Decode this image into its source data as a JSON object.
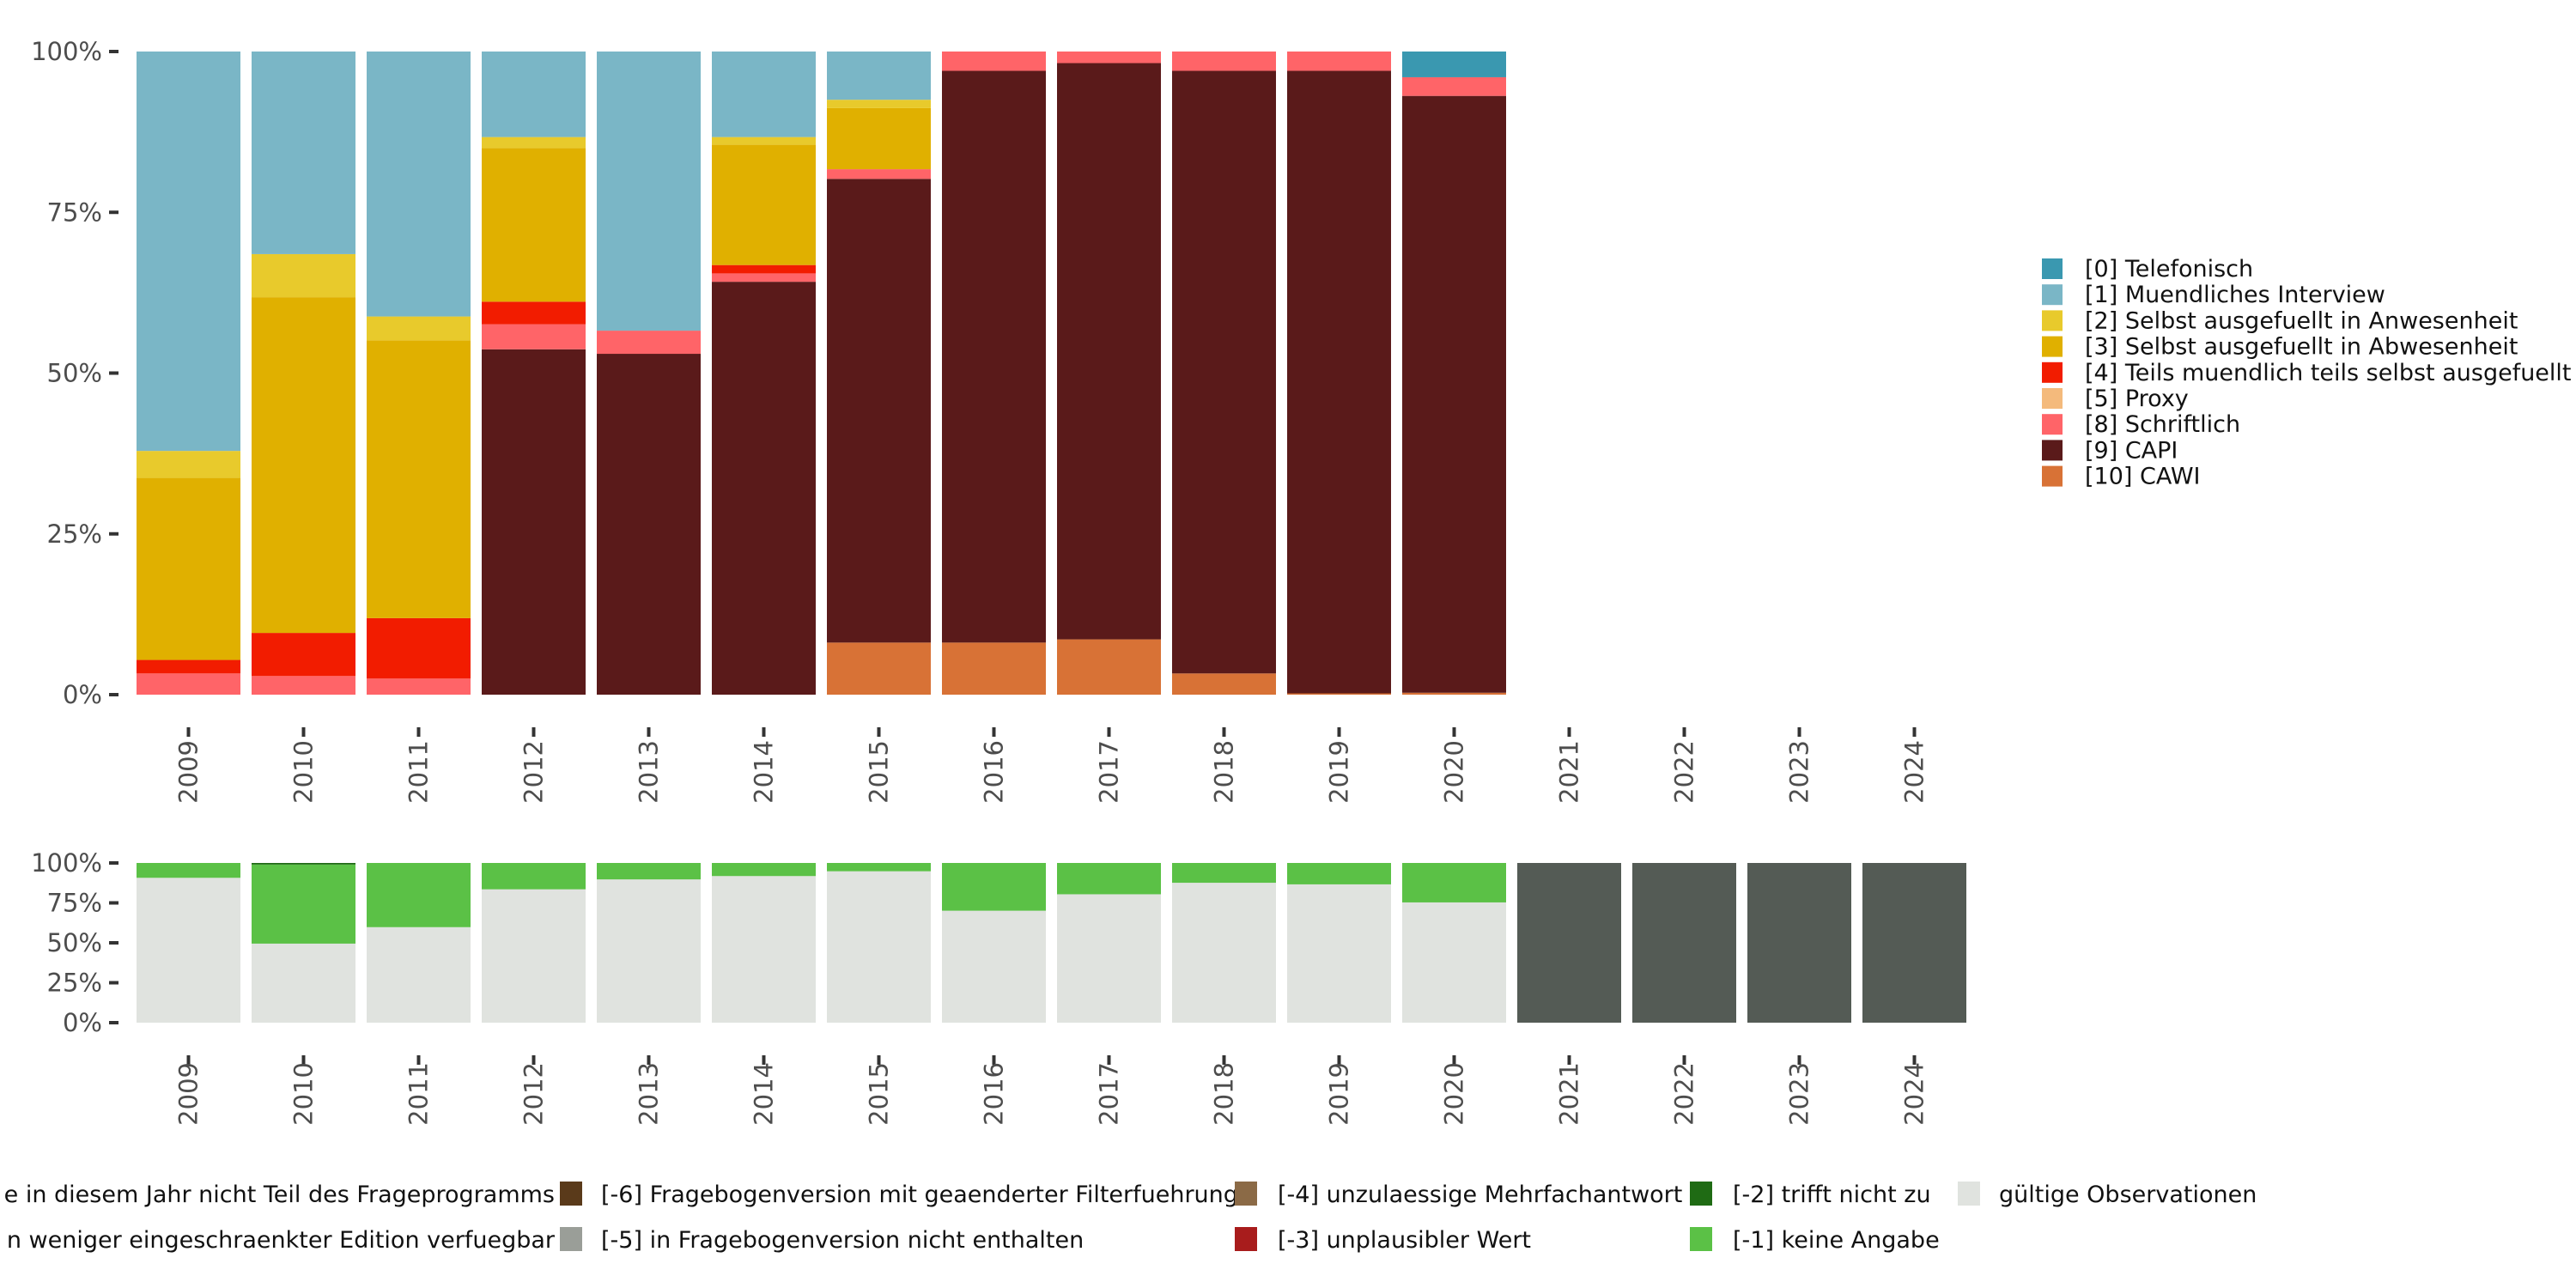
{
  "chart_data": [
    {
      "type": "bar",
      "stacked": "percent",
      "title": "",
      "xlabel": "",
      "ylabel": "",
      "ylim": [
        0,
        100
      ],
      "yticks": [
        "0%",
        "25%",
        "50%",
        "75%",
        "100%"
      ],
      "categories": [
        "2009",
        "2010",
        "2011",
        "2012",
        "2013",
        "2014",
        "2015",
        "2016",
        "2017",
        "2018",
        "2019",
        "2020",
        "2021",
        "2022",
        "2023",
        "2024"
      ],
      "legend_position": "right",
      "series": [
        {
          "name": "[10] CAWI",
          "color": "#d87236",
          "values": [
            0,
            0,
            0,
            0,
            0,
            0,
            8.1,
            8.1,
            8.6,
            3.3,
            0.2,
            0.3,
            null,
            null,
            null,
            null
          ]
        },
        {
          "name": "[9] CAPI",
          "color": "#5a1a1a",
          "values": [
            0,
            0,
            0,
            53.7,
            53.0,
            64.2,
            72.1,
            88.9,
            89.6,
            93.7,
            96.8,
            92.8,
            null,
            null,
            null,
            null
          ]
        },
        {
          "name": "[8] Schriftlich",
          "color": "#ff6468",
          "values": [
            3.3,
            2.9,
            2.5,
            3.9,
            3.6,
            1.3,
            1.5,
            3.0,
            1.8,
            3.0,
            3.0,
            2.9,
            null,
            null,
            null,
            null
          ]
        },
        {
          "name": "[5] Proxy",
          "color": "#f4ba7c",
          "values": [
            0,
            0,
            0,
            0,
            0,
            0,
            0,
            0,
            0,
            0,
            0,
            0,
            null,
            null,
            null,
            null
          ]
        },
        {
          "name": "[4] Teils muendlich teils selbst ausgefuellt",
          "color": "#f21c00",
          "values": [
            2.1,
            6.7,
            9.4,
            3.5,
            0,
            1.3,
            0,
            0,
            0,
            0,
            0,
            0,
            null,
            null,
            null,
            null
          ]
        },
        {
          "name": "[3] Selbst ausgefuellt in Abwesenheit",
          "color": "#e0b000",
          "values": [
            28.3,
            52.2,
            43.2,
            23.9,
            0,
            18.7,
            9.5,
            0,
            0,
            0,
            0,
            0,
            null,
            null,
            null,
            null
          ]
        },
        {
          "name": "[2] Selbst ausgefuellt in Anwesenheit",
          "color": "#e8ca2c",
          "values": [
            4.2,
            6.7,
            3.7,
            1.7,
            0,
            1.2,
            1.3,
            0,
            0,
            0,
            0,
            0,
            null,
            null,
            null,
            null
          ]
        },
        {
          "name": "[1] Muendliches Interview",
          "color": "#7ab6c6",
          "values": [
            62.1,
            31.5,
            41.2,
            13.3,
            43.4,
            13.3,
            7.5,
            0,
            0,
            0,
            0,
            0,
            null,
            null,
            null,
            null
          ]
        },
        {
          "name": "[0] Telefonisch",
          "color": "#3a98b0",
          "values": [
            0,
            0,
            0,
            0,
            0,
            0,
            0,
            0,
            0,
            0,
            0,
            4.0,
            null,
            null,
            null,
            null
          ]
        }
      ],
      "legend_order": [
        "[0] Telefonisch",
        "[1] Muendliches Interview",
        "[2] Selbst ausgefuellt in Anwesenheit",
        "[3] Selbst ausgefuellt in Abwesenheit",
        "[4] Teils muendlich teils selbst ausgefuellt",
        "[5] Proxy",
        "[8] Schriftlich",
        "[9] CAPI",
        "[10] CAWI"
      ]
    },
    {
      "type": "bar",
      "stacked": "percent",
      "ylim": [
        0,
        100
      ],
      "yticks": [
        "0%",
        "25%",
        "50%",
        "75%",
        "100%"
      ],
      "categories": [
        "2009",
        "2010",
        "2011",
        "2012",
        "2013",
        "2014",
        "2015",
        "2016",
        "2017",
        "2018",
        "2019",
        "2020",
        "2021",
        "2022",
        "2023",
        "2024"
      ],
      "legend_position": "bottom",
      "series": [
        {
          "name": "gültige Observationen",
          "color": "#e0e3df",
          "values": [
            90.7,
            49.5,
            59.8,
            83.5,
            89.7,
            91.8,
            94.8,
            70.1,
            80.4,
            87.6,
            86.6,
            75.3,
            0,
            0,
            0,
            0
          ]
        },
        {
          "name": "[-1] keine Angabe",
          "color": "#5bc146",
          "values": [
            9.3,
            49.5,
            40.2,
            16.5,
            10.3,
            8.2,
            5.2,
            29.9,
            19.6,
            12.4,
            13.4,
            24.7,
            0,
            0,
            0,
            0
          ]
        },
        {
          "name": "[-2] trifft nicht zu",
          "color": "#1f6b14",
          "values": [
            0,
            1.0,
            0,
            0,
            0,
            0,
            0,
            0,
            0,
            0,
            0,
            0,
            0,
            0,
            0,
            0
          ]
        },
        {
          "name": "[-3] unplausibler Wert",
          "color": "#a81c1c",
          "values": [
            0,
            0,
            0,
            0,
            0,
            0,
            0,
            0,
            0,
            0,
            0,
            0,
            0,
            0,
            0,
            0
          ]
        },
        {
          "name": "[-4] unzulaessige Mehrfachantwort",
          "color": "#8b6a46",
          "values": [
            0,
            0,
            0,
            0,
            0,
            0,
            0,
            0,
            0,
            0,
            0,
            0,
            0,
            0,
            0,
            0
          ]
        },
        {
          "name": "[-5] in Fragebogenversion nicht enthalten",
          "color": "#9a9e98",
          "values": [
            0,
            0,
            0,
            0,
            0,
            0,
            0,
            0,
            0,
            0,
            0,
            0,
            0,
            0,
            0,
            0
          ]
        },
        {
          "name": "[-6] Fragebogenversion mit geaenderter Filterfuehrung",
          "color": "#5a3a1a",
          "values": [
            0,
            0,
            0,
            0,
            0,
            0,
            0,
            0,
            0,
            0,
            0,
            0,
            0,
            0,
            0,
            0
          ]
        },
        {
          "name": "e in diesem Jahr nicht Teil des Frageprogramms",
          "color": "#545b55",
          "values": [
            0,
            0,
            0,
            0,
            0,
            0,
            0,
            0,
            0,
            0,
            0,
            0,
            100,
            100,
            100,
            100
          ]
        }
      ],
      "legend_rows": [
        [
          "e in diesem Jahr nicht Teil des Frageprogramms",
          "[-6] Fragebogenversion mit geaenderter Filterfuehrung",
          "[-4] unzulaessige Mehrfachantwort",
          "[-2] trifft nicht zu",
          "gültige Observationen"
        ],
        [
          "n weniger eingeschraenkter Edition verfuegbar",
          "[-5] in Fragebogenversion nicht enthalten",
          "[-3] unplausibler Wert",
          "[-1] keine Angabe",
          ""
        ]
      ],
      "legend_colors": [
        [
          "#545b55",
          "#5a3a1a",
          "#8b6a46",
          "#1f6b14",
          "#e0e3df"
        ],
        [
          "#c8c8c8",
          "#9a9e98",
          "#a81c1c",
          "#5bc146",
          ""
        ]
      ]
    }
  ]
}
